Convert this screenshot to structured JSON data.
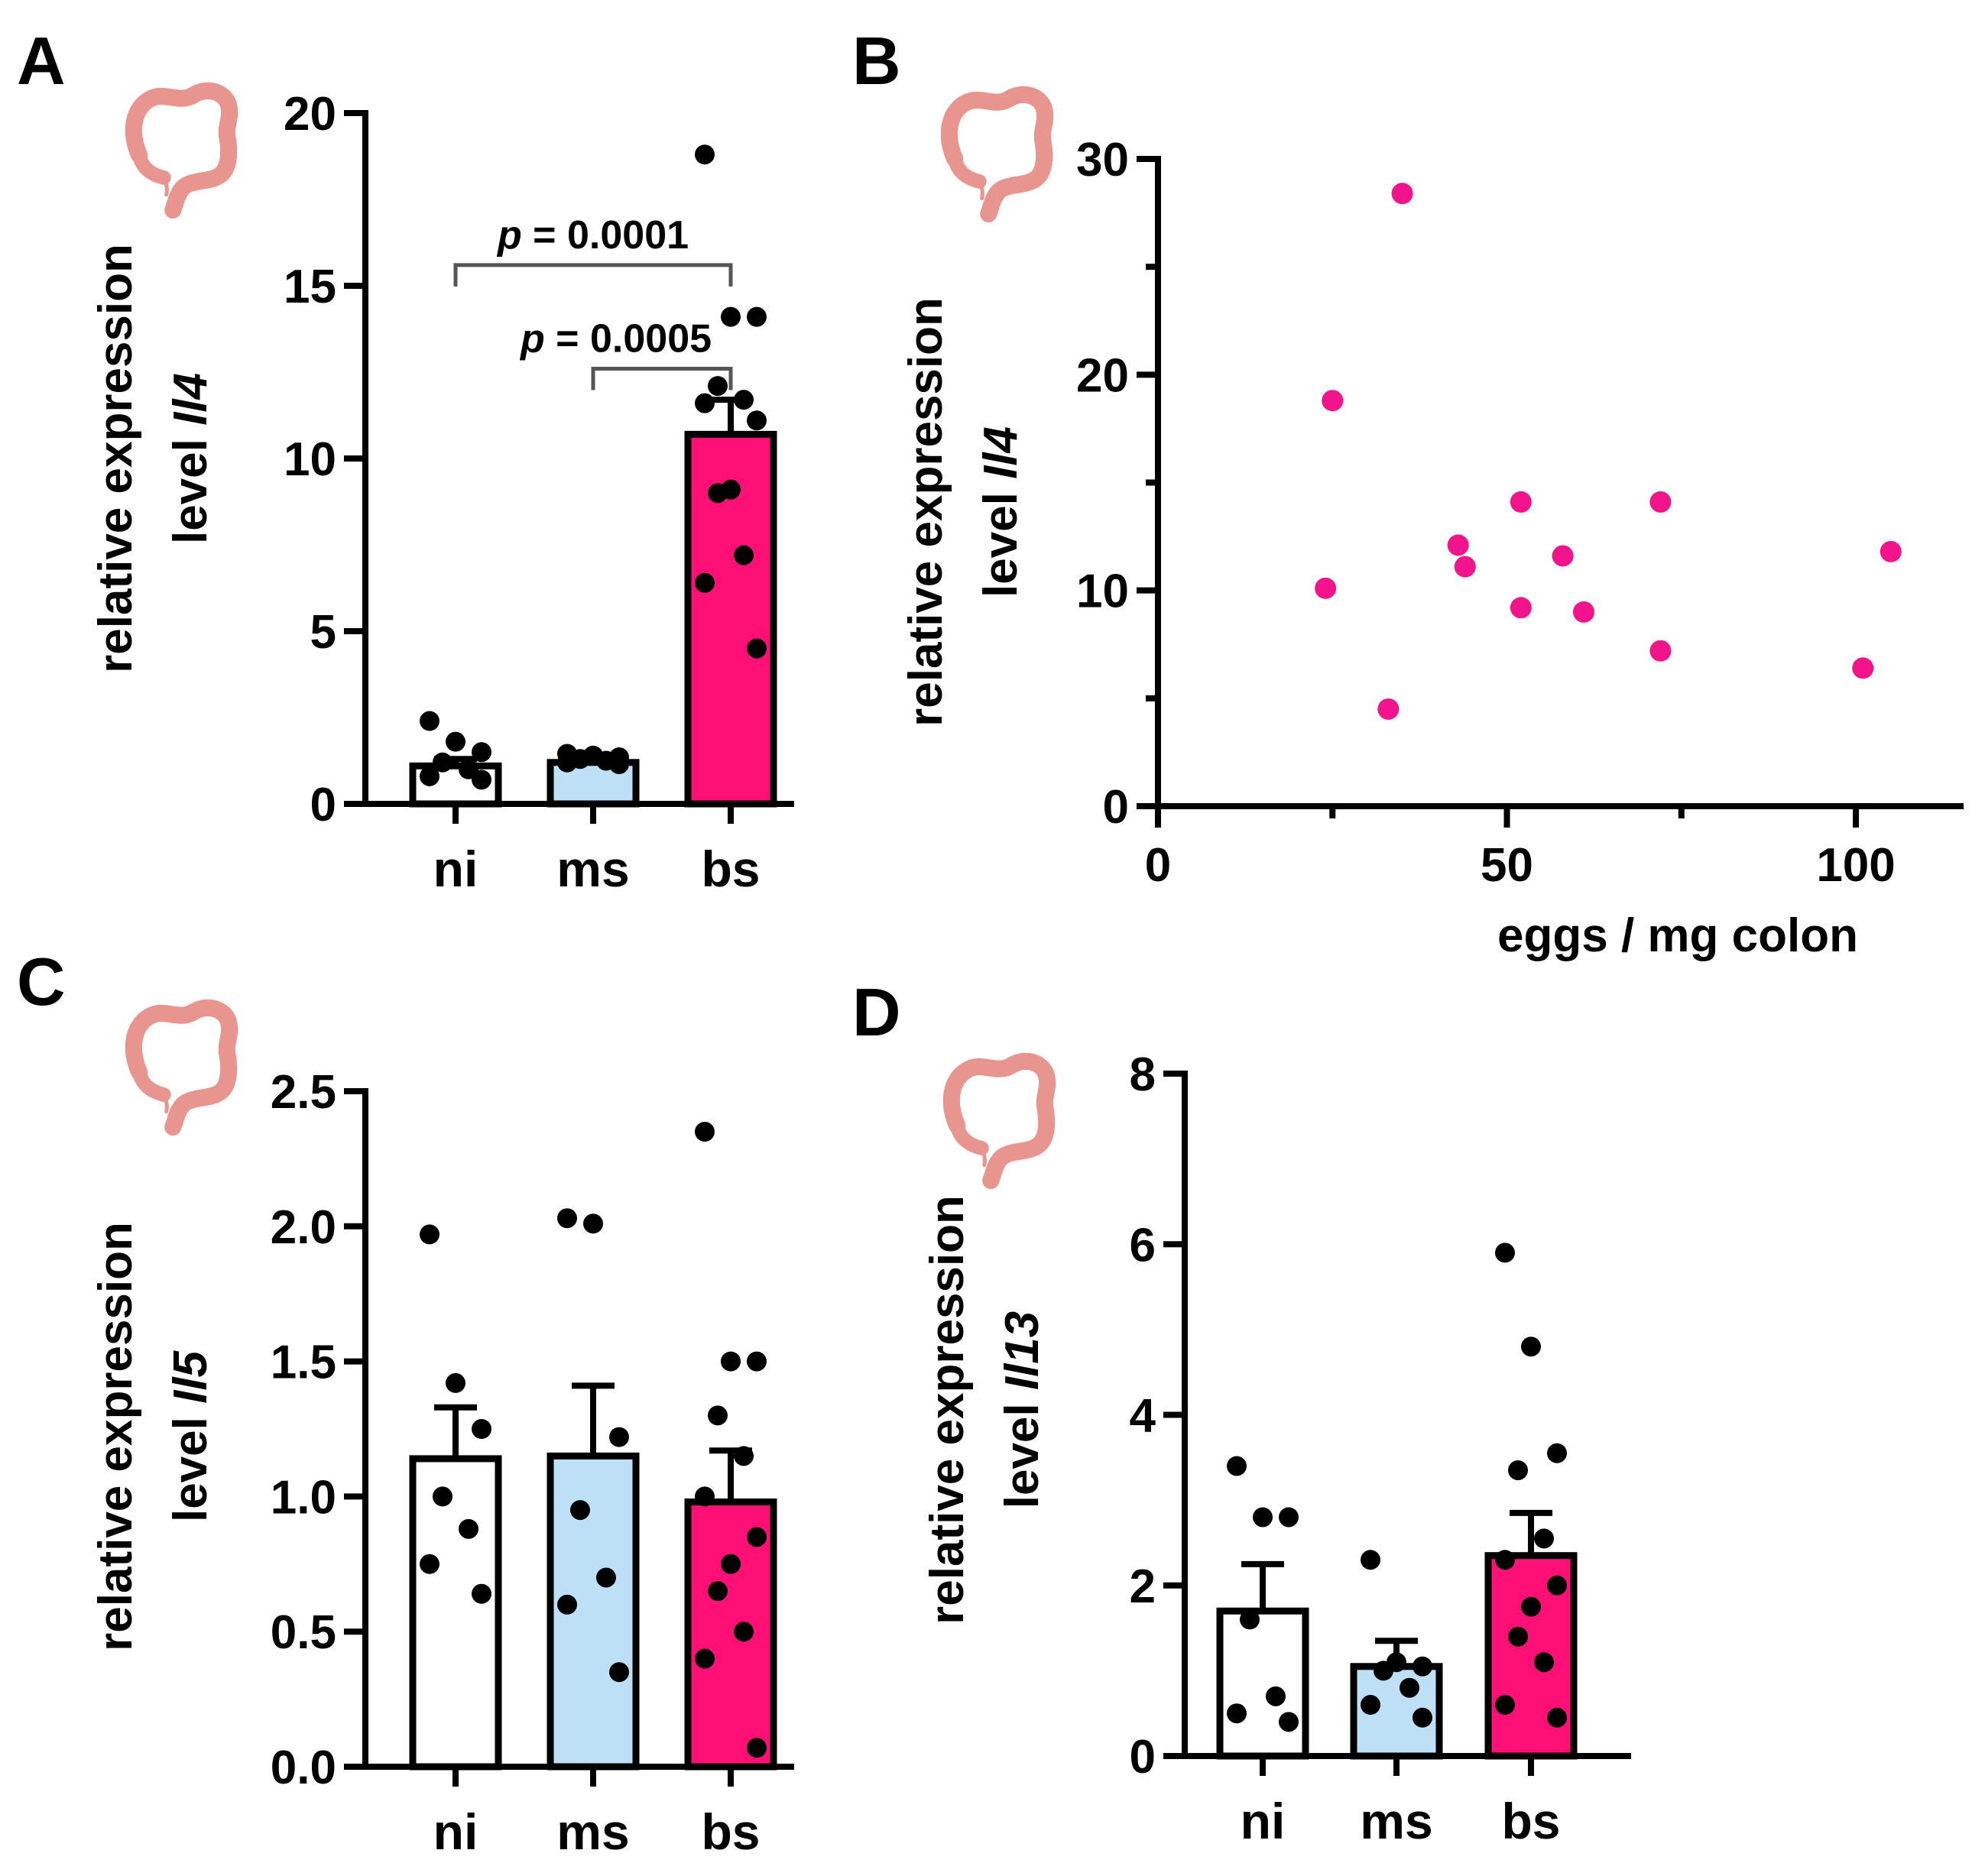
{
  "colors": {
    "ni": "#ffffff",
    "ms": "#bde0f7",
    "bs": "#ff1077",
    "scatter": "#f2148a",
    "dots": "#000000",
    "colon_icon": "#e8958f"
  },
  "icons": [
    "colon-icon"
  ],
  "chart_data": [
    {
      "panel": "A",
      "type": "bar",
      "ylabel_line1": "relative expression",
      "ylabel_line2_prefix": "level ",
      "ylabel_gene": "Il4",
      "categories": [
        "ni",
        "ms",
        "bs"
      ],
      "values": [
        1.1,
        1.2,
        10.7
      ],
      "sem": [
        0.2,
        0.05,
        1.0
      ],
      "points": [
        [
          2.4,
          1.8,
          1.5,
          1.2,
          1.0,
          0.8,
          0.7
        ],
        [
          1.45,
          1.4,
          1.35,
          1.3,
          1.25,
          1.2,
          1.15
        ],
        [
          18.8,
          14.1,
          14.1,
          12.1,
          11.7,
          11.6,
          11.1,
          9.1,
          9.0,
          7.2,
          6.4,
          4.5
        ]
      ],
      "ylim": [
        0,
        20
      ],
      "yticks": [
        "0",
        "5",
        "10",
        "15",
        "20"
      ],
      "annotations": [
        {
          "from": 0,
          "to": 2,
          "y": 15.6,
          "p_symbol": "p",
          "text": " = 0.0001"
        },
        {
          "from": 1,
          "to": 2,
          "y": 12.6,
          "p_symbol": "p",
          "text": " = 0.0005"
        }
      ]
    },
    {
      "panel": "B",
      "type": "scatter",
      "xlabel": "eggs / mg colon",
      "ylabel_line1": "relative expression",
      "ylabel_line2_prefix": "level ",
      "ylabel_gene": "Il4",
      "x": [
        24,
        25,
        33,
        35,
        43,
        44,
        52,
        52,
        58,
        61,
        72,
        72,
        101,
        105
      ],
      "y": [
        10.1,
        18.8,
        4.5,
        28.4,
        12.1,
        11.1,
        14.1,
        9.2,
        11.6,
        9.0,
        14.1,
        7.2,
        6.4,
        11.8
      ],
      "xlim": [
        0,
        115
      ],
      "ylim": [
        0,
        30
      ],
      "xticks": [
        "0",
        "50",
        "100"
      ],
      "yticks": [
        "0",
        "10",
        "20",
        "30"
      ]
    },
    {
      "panel": "C",
      "type": "bar",
      "ylabel_line1": "relative expression",
      "ylabel_line2_prefix": "level ",
      "ylabel_gene": "Il5",
      "categories": [
        "ni",
        "ms",
        "bs"
      ],
      "values": [
        1.14,
        1.15,
        0.98
      ],
      "sem": [
        0.19,
        0.26,
        0.19
      ],
      "points": [
        [
          1.97,
          1.42,
          1.25,
          1.0,
          0.88,
          0.75,
          0.64
        ],
        [
          2.03,
          2.01,
          1.22,
          0.95,
          0.7,
          0.6,
          0.35
        ],
        [
          2.35,
          1.5,
          1.5,
          1.3,
          1.15,
          1.0,
          0.85,
          0.75,
          0.65,
          0.5,
          0.4,
          0.07
        ]
      ],
      "ylim": [
        0,
        2.5
      ],
      "yticks": [
        "0.0",
        "0.5",
        "1.0",
        "1.5",
        "2.0",
        "2.5"
      ]
    },
    {
      "panel": "D",
      "type": "bar",
      "ylabel_line1": "relative expression",
      "ylabel_line2_prefix": "level ",
      "ylabel_gene": "Il13",
      "categories": [
        "ni",
        "ms",
        "bs"
      ],
      "values": [
        1.7,
        1.05,
        2.35
      ],
      "sem": [
        0.55,
        0.3,
        0.5
      ],
      "points": [
        [
          3.4,
          2.8,
          2.8,
          1.6,
          0.7,
          0.5,
          0.4
        ],
        [
          2.3,
          1.1,
          1.05,
          1.0,
          0.8,
          0.6,
          0.45
        ],
        [
          5.9,
          4.8,
          3.55,
          3.35,
          2.55,
          2.3,
          2.0,
          1.75,
          1.4,
          1.1,
          0.6,
          0.45
        ]
      ],
      "ylim": [
        0,
        8
      ],
      "yticks": [
        "0",
        "2",
        "4",
        "6",
        "8"
      ]
    }
  ],
  "panel_letters": [
    "A",
    "B",
    "C",
    "D"
  ]
}
